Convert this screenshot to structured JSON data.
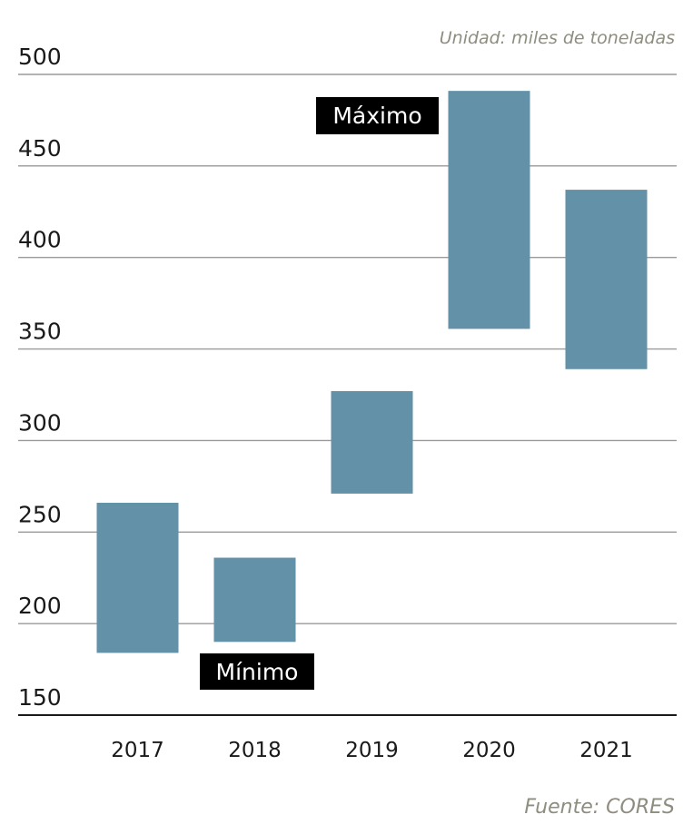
{
  "unit_note": "Unidad: miles de toneladas",
  "source_note": "Fuente: CORES",
  "annotations": {
    "max_label": "Máximo",
    "min_label": "Mínimo"
  },
  "colors": {
    "bar": "#6391a8",
    "grid": "#9a9a9a",
    "text": "#1a1a1a",
    "note": "#8e8d7f",
    "tag_background": "#000000",
    "tag_text": "#ffffff"
  },
  "chart_data": {
    "type": "bar",
    "subtype": "floating-range",
    "title": "",
    "xlabel": "",
    "ylabel": "",
    "ylim": [
      150,
      500
    ],
    "yticks": [
      150,
      200,
      250,
      300,
      350,
      400,
      450,
      500
    ],
    "grid": true,
    "categories": [
      "2017",
      "2018",
      "2019",
      "2020",
      "2021"
    ],
    "series": [
      {
        "low": [
          184,
          190,
          271,
          361,
          339
        ],
        "high": [
          266,
          236,
          327,
          491,
          437
        ]
      }
    ]
  }
}
